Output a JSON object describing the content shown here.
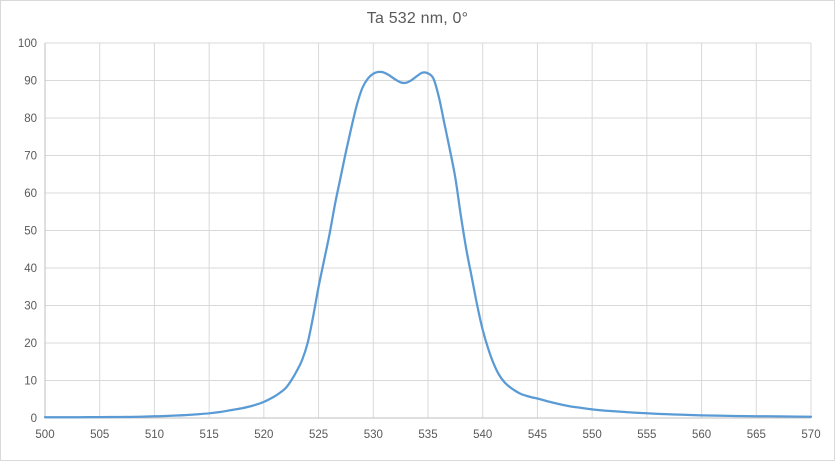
{
  "chart": {
    "title": "Ta 532 nm, 0°",
    "colors": {
      "line": "#5B9BD5",
      "gridline": "#D9D9D9",
      "axis_line": "#BFBFBF",
      "text": "#595959",
      "background": "#FFFFFF",
      "border": "#D9D9D9"
    }
  },
  "chart_data": {
    "type": "line",
    "title": "Ta 532 nm, 0°",
    "xlabel": "",
    "ylabel": "",
    "xlim": [
      500,
      570
    ],
    "ylim": [
      0,
      100
    ],
    "x_ticks": [
      500,
      505,
      510,
      515,
      520,
      525,
      530,
      535,
      540,
      545,
      550,
      555,
      560,
      565,
      570
    ],
    "y_ticks": [
      0,
      10,
      20,
      30,
      40,
      50,
      60,
      70,
      80,
      90,
      100
    ],
    "grid": true,
    "legend": false,
    "series": [
      {
        "points": [
          [
            500,
            0.2
          ],
          [
            502,
            0.2
          ],
          [
            504,
            0.22
          ],
          [
            506,
            0.25
          ],
          [
            508,
            0.3
          ],
          [
            510,
            0.45
          ],
          [
            511,
            0.55
          ],
          [
            512,
            0.65
          ],
          [
            513,
            0.8
          ],
          [
            514,
            1.0
          ],
          [
            515,
            1.25
          ],
          [
            516,
            1.6
          ],
          [
            517,
            2.1
          ],
          [
            518,
            2.6
          ],
          [
            519,
            3.3
          ],
          [
            520,
            4.3
          ],
          [
            521,
            5.8
          ],
          [
            521.5,
            6.8
          ],
          [
            522,
            8.0
          ],
          [
            522.5,
            10.0
          ],
          [
            523,
            12.5
          ],
          [
            523.5,
            15.5
          ],
          [
            524,
            20.0
          ],
          [
            524.5,
            27.0
          ],
          [
            525,
            35.0
          ],
          [
            525.5,
            42.0
          ],
          [
            526,
            49.0
          ],
          [
            526.5,
            57.0
          ],
          [
            527,
            64.0
          ],
          [
            527.5,
            71.0
          ],
          [
            528,
            77.5
          ],
          [
            528.5,
            83.5
          ],
          [
            529,
            88.0
          ],
          [
            529.5,
            90.5
          ],
          [
            530,
            91.8
          ],
          [
            530.5,
            92.3
          ],
          [
            531,
            92.1
          ],
          [
            531.5,
            91.3
          ],
          [
            532,
            90.3
          ],
          [
            532.5,
            89.5
          ],
          [
            533,
            89.4
          ],
          [
            533.5,
            90.1
          ],
          [
            534,
            91.2
          ],
          [
            534.5,
            92.1
          ],
          [
            535,
            91.9
          ],
          [
            535.5,
            90.5
          ],
          [
            536,
            85.5
          ],
          [
            536.5,
            78.5
          ],
          [
            537,
            71.5
          ],
          [
            537.5,
            64.0
          ],
          [
            538,
            54.0
          ],
          [
            538.5,
            45.0
          ],
          [
            539,
            37.5
          ],
          [
            539.5,
            30.0
          ],
          [
            540,
            23.5
          ],
          [
            540.5,
            18.5
          ],
          [
            541,
            14.5
          ],
          [
            541.5,
            11.5
          ],
          [
            542,
            9.5
          ],
          [
            542.5,
            8.2
          ],
          [
            543,
            7.2
          ],
          [
            543.5,
            6.4
          ],
          [
            544,
            5.9
          ],
          [
            544.5,
            5.5
          ],
          [
            545,
            5.2
          ],
          [
            546,
            4.4
          ],
          [
            547,
            3.7
          ],
          [
            548,
            3.1
          ],
          [
            549,
            2.7
          ],
          [
            550,
            2.3
          ],
          [
            551,
            2.0
          ],
          [
            552,
            1.8
          ],
          [
            553,
            1.6
          ],
          [
            554,
            1.4
          ],
          [
            555,
            1.25
          ],
          [
            556,
            1.1
          ],
          [
            557,
            1.0
          ],
          [
            558,
            0.9
          ],
          [
            559,
            0.8
          ],
          [
            560,
            0.7
          ],
          [
            562,
            0.6
          ],
          [
            564,
            0.5
          ],
          [
            566,
            0.45
          ],
          [
            568,
            0.4
          ],
          [
            570,
            0.35
          ]
        ]
      }
    ]
  }
}
